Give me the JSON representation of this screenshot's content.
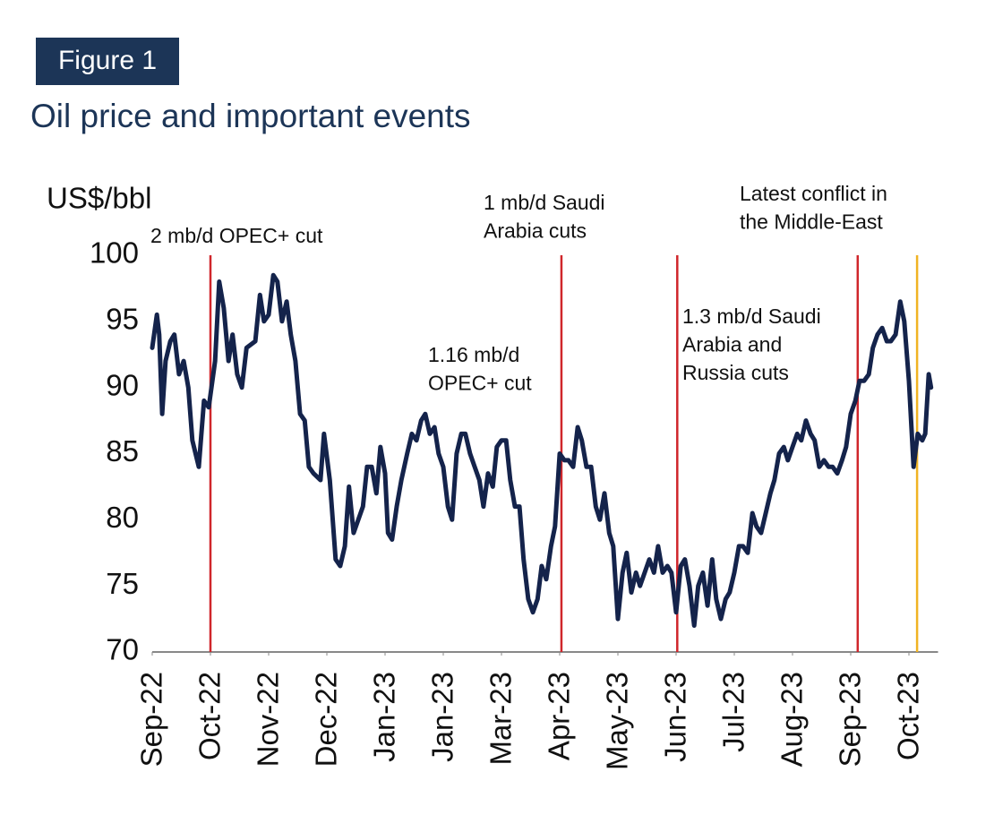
{
  "chart_data": {
    "type": "line",
    "figure_label": "Figure 1",
    "title": "Oil price and important events",
    "ylabel": "US$/bbl",
    "ylim": [
      70,
      100
    ],
    "yticks": [
      70,
      75,
      80,
      85,
      90,
      95,
      100
    ],
    "xlim": [
      0,
      13.5
    ],
    "xticks": [
      {
        "value": 0,
        "label": "Sep-22"
      },
      {
        "value": 1,
        "label": "Oct-22"
      },
      {
        "value": 2,
        "label": "Nov-22"
      },
      {
        "value": 3,
        "label": "Dec-22"
      },
      {
        "value": 4,
        "label": "Jan-23"
      },
      {
        "value": 5,
        "label": "Jan-23"
      },
      {
        "value": 6,
        "label": "Mar-23"
      },
      {
        "value": 7,
        "label": "Apr-23"
      },
      {
        "value": 8,
        "label": "May-23"
      },
      {
        "value": 9,
        "label": "Jun-23"
      },
      {
        "value": 10,
        "label": "Jul-23"
      },
      {
        "value": 11,
        "label": "Aug-23"
      },
      {
        "value": 12,
        "label": "Sep-23"
      },
      {
        "value": 13,
        "label": "Oct-23"
      }
    ],
    "series": [
      {
        "color": "#14234b",
        "x": [
          0,
          0.08,
          0.12,
          0.17,
          0.23,
          0.31,
          0.38,
          0.46,
          0.54,
          0.62,
          0.69,
          0.8,
          0.89,
          0.97,
          1.08,
          1.15,
          1.23,
          1.31,
          1.38,
          1.46,
          1.54,
          1.62,
          1.77,
          1.85,
          1.92,
          2.0,
          2.08,
          2.15,
          2.23,
          2.31,
          2.38,
          2.46,
          2.54,
          2.62,
          2.69,
          2.77,
          2.89,
          2.95,
          3.05,
          3.15,
          3.23,
          3.31,
          3.38,
          3.46,
          3.54,
          3.62,
          3.69,
          3.77,
          3.85,
          3.92,
          4.0,
          4.05,
          4.12,
          4.2,
          4.28,
          4.38,
          4.46,
          4.54,
          4.62,
          4.69,
          4.77,
          4.85,
          4.92,
          5.0,
          5.08,
          5.15,
          5.23,
          5.31,
          5.38,
          5.46,
          5.54,
          5.62,
          5.69,
          5.77,
          5.85,
          5.92,
          6.0,
          6.08,
          6.15,
          6.23,
          6.31,
          6.38,
          6.46,
          6.54,
          6.62,
          6.69,
          6.77,
          6.85,
          6.92,
          7.0,
          7.08,
          7.15,
          7.23,
          7.31,
          7.38,
          7.46,
          7.54,
          7.62,
          7.69,
          7.77,
          7.85,
          7.92,
          8.0,
          8.08,
          8.15,
          8.23,
          8.31,
          8.38,
          8.46,
          8.54,
          8.62,
          8.69,
          8.77,
          8.85,
          8.92,
          9.0,
          9.08,
          9.15,
          9.23,
          9.31,
          9.38,
          9.46,
          9.54,
          9.62,
          9.69,
          9.77,
          9.85,
          9.92,
          10.0,
          10.08,
          10.15,
          10.23,
          10.31,
          10.38,
          10.46,
          10.54,
          10.62,
          10.69,
          10.77,
          10.85,
          10.92,
          11.0,
          11.08,
          11.15,
          11.23,
          11.31,
          11.38,
          11.46,
          11.54,
          11.62,
          11.69,
          11.77,
          11.85,
          11.92,
          12.0,
          12.08,
          12.15,
          12.23,
          12.31,
          12.38,
          12.46,
          12.54,
          12.62,
          12.69,
          12.77,
          12.85,
          12.92,
          13.0,
          13.08,
          13.15,
          13.23,
          13.28,
          13.34,
          13.38
        ],
        "values": [
          93,
          95.5,
          94,
          88,
          92,
          93.5,
          94,
          91,
          92,
          90,
          86,
          84,
          89,
          88.5,
          92,
          98,
          96,
          92,
          94,
          91,
          90,
          93,
          93.5,
          97,
          95,
          95.5,
          98.5,
          98,
          95,
          96.5,
          94,
          92,
          88,
          87.5,
          84,
          83.5,
          83,
          86.5,
          83,
          77,
          76.5,
          78,
          82.5,
          79,
          80,
          81,
          84,
          84,
          82,
          85.5,
          83.5,
          79,
          78.5,
          81,
          83,
          85,
          86.5,
          86,
          87.5,
          88,
          86.5,
          87,
          85,
          84,
          81,
          80,
          85,
          86.5,
          86.5,
          85,
          84,
          83,
          81,
          83.5,
          82.5,
          85.5,
          86,
          86,
          83,
          81,
          81,
          77,
          74,
          73,
          74,
          76.5,
          75.5,
          78,
          79.5,
          85,
          84.5,
          84.5,
          84,
          87,
          86,
          84,
          84,
          81,
          80,
          82,
          79,
          78,
          72.5,
          76,
          77.5,
          74.5,
          76,
          75,
          76,
          77,
          76,
          78,
          76,
          76.5,
          76,
          73,
          76.5,
          77,
          75,
          72,
          75,
          76,
          73.5,
          77,
          74,
          72.5,
          74,
          74.5,
          76,
          78,
          78,
          77.5,
          80.5,
          79.5,
          79,
          80.5,
          82,
          83,
          85,
          85.5,
          84.5,
          85.5,
          86.5,
          86,
          87.5,
          86.5,
          86,
          84,
          84.5,
          84,
          84,
          83.5,
          84.5,
          85.5,
          88,
          89,
          90.5,
          90.5,
          91,
          93,
          94,
          94.5,
          93.5,
          93.5,
          94,
          96.5,
          95,
          90.5,
          84,
          86.5,
          86,
          86.5,
          91,
          90
        ]
      }
    ],
    "events": [
      {
        "x": 1.0,
        "color": "#d0262b"
      },
      {
        "x": 7.03,
        "color": "#d0262b"
      },
      {
        "x": 9.02,
        "color": "#d0262b"
      },
      {
        "x": 12.12,
        "color": "#d0262b"
      },
      {
        "x": 13.14,
        "color": "#f0b323"
      }
    ],
    "annotations": [
      {
        "text": [
          "2 mb/d OPEC+ cut"
        ]
      },
      {
        "text": [
          "1.16 mb/d",
          "OPEC+ cut"
        ]
      },
      {
        "text": [
          "1 mb/d Saudi",
          "Arabia cuts"
        ]
      },
      {
        "text": [
          "1.3 mb/d Saudi",
          "Arabia and",
          "Russia cuts"
        ]
      },
      {
        "text": [
          "Latest conflict in",
          "the Middle-East"
        ]
      }
    ]
  }
}
